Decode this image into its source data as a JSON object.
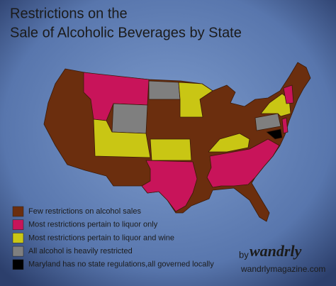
{
  "header": {
    "title_lines": [
      "Restrictions on the",
      "Sale of Alcoholic Beverages by State"
    ]
  },
  "legend": {
    "items": [
      {
        "label": "Few restrictions on alcohol sales",
        "color": "#6b2e0e"
      },
      {
        "label": "Most restrictions pertain to liquor only",
        "color": "#c8145a"
      },
      {
        "label": "Most restrictions pertain to liquor and wine",
        "color": "#c9c614"
      },
      {
        "label": "All alcohol is heavily restricted",
        "color": "#7f7f7f"
      },
      {
        "label": "Maryland has no state regulations,all governed locally",
        "color": "#000000"
      }
    ]
  },
  "credit": {
    "by": "by",
    "brand": "wandrly",
    "site": "wandrlymagazine.com"
  }
}
